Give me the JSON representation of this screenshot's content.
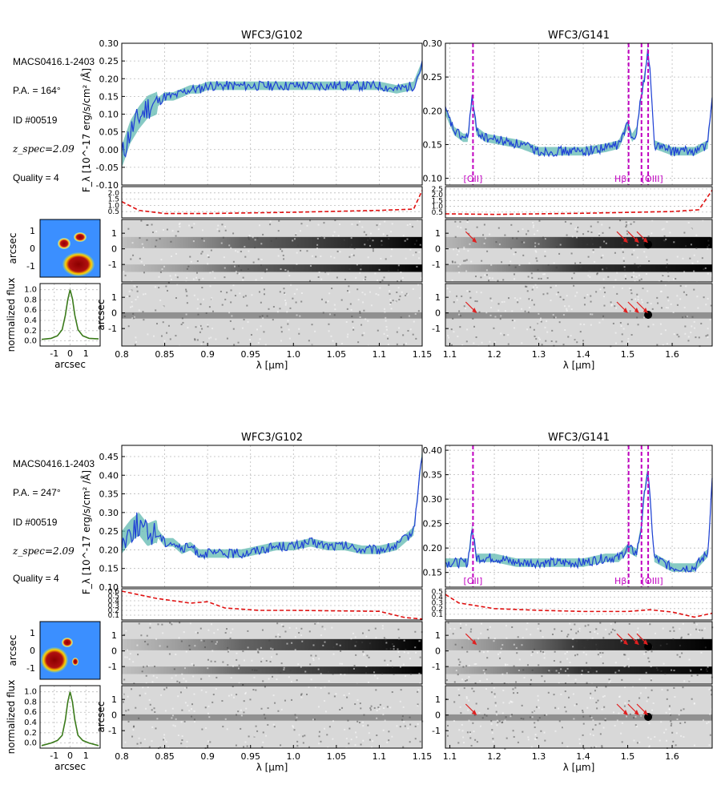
{
  "colors": {
    "spectrum": "#1f3fd6",
    "error_band": "#5fb8b0",
    "contamination": "#e01010",
    "emission_line": "#c000c0",
    "profile": "#3a7a1a",
    "arrow": "#e02020"
  },
  "panels": [
    {
      "name": "upper",
      "info": {
        "field": "MACS0416.1-2403",
        "pa": "P.A. = 164°",
        "id": "ID #00519",
        "zspec": "z_spec=2.09",
        "quality": "Quality = 4"
      }
    },
    {
      "name": "lower",
      "info": {
        "field": "MACS0416.1-2403",
        "pa": "P.A. = 247°",
        "id": "ID #00519",
        "zspec": "z_spec=2.09",
        "quality": "Quality = 4"
      }
    }
  ],
  "chart_data": [
    {
      "type": "line",
      "panel": "upper",
      "title": "WFC3/G102",
      "xlabel": "λ [μm]",
      "ylabel": "F_λ [10^-17 erg/s/cm² /Å]",
      "xlim": [
        0.8,
        1.15
      ],
      "ylim": [
        -0.1,
        0.3
      ],
      "xticks": [
        "0.8",
        "0.85",
        "0.9",
        "0.95",
        "1.0",
        "1.05",
        "1.1",
        "1.15"
      ],
      "yticks": [
        "-0.10",
        "-0.05",
        "0.00",
        "0.05",
        "0.10",
        "0.15",
        "0.20",
        "0.25",
        "0.30"
      ],
      "spectrum": {
        "x": [
          0.8,
          0.81,
          0.82,
          0.83,
          0.84,
          0.85,
          0.86,
          0.87,
          0.88,
          0.89,
          0.9,
          0.92,
          0.94,
          0.96,
          0.98,
          1.0,
          1.02,
          1.04,
          1.06,
          1.08,
          1.1,
          1.12,
          1.14,
          1.15
        ],
        "y": [
          -0.02,
          0.05,
          0.09,
          0.12,
          0.13,
          0.15,
          0.15,
          0.16,
          0.17,
          0.17,
          0.18,
          0.18,
          0.18,
          0.18,
          0.18,
          0.18,
          0.18,
          0.18,
          0.18,
          0.18,
          0.18,
          0.17,
          0.18,
          0.24
        ]
      },
      "contamination": {
        "ylim": [
          0,
          2.5
        ],
        "yticks": [
          "0.5",
          "1.0",
          "1.5",
          "2.0"
        ],
        "x": [
          0.8,
          0.82,
          0.85,
          0.9,
          1.0,
          1.1,
          1.14,
          1.15
        ],
        "y": [
          1.3,
          0.6,
          0.35,
          0.35,
          0.45,
          0.6,
          0.7,
          2.2
        ]
      },
      "spatial_axis": {
        "ticks": [
          "1",
          "0",
          "-1"
        ],
        "label": "arcsec"
      },
      "line_markers": []
    },
    {
      "type": "line",
      "panel": "upper",
      "title": "WFC3/G141",
      "xlabel": "λ [μm]",
      "ylabel": "",
      "xlim": [
        1.09,
        1.69
      ],
      "ylim": [
        0.09,
        0.3
      ],
      "xticks": [
        "1.1",
        "1.2",
        "1.3",
        "1.4",
        "1.5",
        "1.6"
      ],
      "yticks": [
        "0.10",
        "0.15",
        "0.20",
        "0.25",
        "0.30"
      ],
      "spectrum": {
        "x": [
          1.09,
          1.11,
          1.13,
          1.14,
          1.15,
          1.16,
          1.18,
          1.22,
          1.26,
          1.3,
          1.35,
          1.4,
          1.45,
          1.48,
          1.5,
          1.51,
          1.52,
          1.53,
          1.54,
          1.545,
          1.55,
          1.56,
          1.6,
          1.65,
          1.68,
          1.69
        ],
        "y": [
          0.2,
          0.17,
          0.16,
          0.16,
          0.22,
          0.17,
          0.16,
          0.155,
          0.15,
          0.14,
          0.14,
          0.14,
          0.145,
          0.15,
          0.18,
          0.16,
          0.17,
          0.22,
          0.26,
          0.29,
          0.26,
          0.15,
          0.14,
          0.14,
          0.15,
          0.22
        ]
      },
      "contamination": {
        "ylim": [
          0,
          2.7
        ],
        "yticks": [
          "0.5",
          "1.0",
          "1.5",
          "2.0",
          "2.5"
        ],
        "x": [
          1.09,
          1.2,
          1.4,
          1.6,
          1.66,
          1.69
        ],
        "y": [
          0.35,
          0.3,
          0.4,
          0.55,
          0.7,
          2.4
        ]
      },
      "spatial_axis": {
        "ticks": [
          "1",
          "0",
          "-1"
        ],
        "label": ""
      },
      "line_markers": [
        {
          "label": "[OII]",
          "x": 1.152
        },
        {
          "label": "Hβ",
          "x": 1.502
        },
        {
          "label": "[OIII]",
          "x": 1.531
        },
        {
          "label": "",
          "x": 1.546
        }
      ]
    },
    {
      "type": "line",
      "panel": "lower",
      "title": "WFC3/G102",
      "xlabel": "λ [μm]",
      "ylabel": "F_λ [10^-17 erg/s/cm² /Å]",
      "xlim": [
        0.8,
        1.15
      ],
      "ylim": [
        0.1,
        0.48
      ],
      "xticks": [
        "0.8",
        "0.85",
        "0.9",
        "0.95",
        "1.0",
        "1.05",
        "1.1",
        "1.15"
      ],
      "yticks": [
        "0.10",
        "0.15",
        "0.20",
        "0.25",
        "0.30",
        "0.35",
        "0.40",
        "0.45"
      ],
      "spectrum": {
        "x": [
          0.8,
          0.81,
          0.82,
          0.83,
          0.84,
          0.85,
          0.86,
          0.87,
          0.88,
          0.89,
          0.9,
          0.92,
          0.94,
          0.96,
          0.98,
          1.0,
          1.02,
          1.04,
          1.06,
          1.08,
          1.1,
          1.12,
          1.14,
          1.15
        ],
        "y": [
          0.22,
          0.25,
          0.27,
          0.24,
          0.25,
          0.22,
          0.22,
          0.2,
          0.21,
          0.19,
          0.19,
          0.19,
          0.19,
          0.2,
          0.21,
          0.21,
          0.22,
          0.21,
          0.21,
          0.2,
          0.2,
          0.21,
          0.25,
          0.46
        ]
      },
      "contamination": {
        "ylim": [
          0,
          0.65
        ],
        "yticks": [
          "0.1",
          "0.2",
          "0.3",
          "0.4",
          "0.5",
          "0.6"
        ],
        "x": [
          0.8,
          0.84,
          0.88,
          0.9,
          0.92,
          0.96,
          1.0,
          1.1,
          1.13,
          1.15
        ],
        "y": [
          0.6,
          0.45,
          0.35,
          0.38,
          0.25,
          0.2,
          0.2,
          0.18,
          0.05,
          0.02
        ]
      },
      "spatial_axis": {
        "ticks": [
          "1",
          "0",
          "-1"
        ],
        "label": "arcsec"
      },
      "line_markers": []
    },
    {
      "type": "line",
      "panel": "lower",
      "title": "WFC3/G141",
      "xlabel": "λ [μm]",
      "ylabel": "",
      "xlim": [
        1.09,
        1.69
      ],
      "ylim": [
        0.12,
        0.41
      ],
      "xticks": [
        "1.1",
        "1.2",
        "1.3",
        "1.4",
        "1.5",
        "1.6"
      ],
      "yticks": [
        "0.15",
        "0.20",
        "0.25",
        "0.30",
        "0.35",
        "0.40"
      ],
      "spectrum": {
        "x": [
          1.09,
          1.12,
          1.14,
          1.15,
          1.16,
          1.2,
          1.25,
          1.3,
          1.35,
          1.4,
          1.45,
          1.48,
          1.5,
          1.52,
          1.53,
          1.54,
          1.545,
          1.55,
          1.56,
          1.6,
          1.65,
          1.68,
          1.69
        ],
        "y": [
          0.17,
          0.17,
          0.17,
          0.24,
          0.18,
          0.18,
          0.17,
          0.17,
          0.17,
          0.17,
          0.18,
          0.18,
          0.2,
          0.19,
          0.24,
          0.33,
          0.36,
          0.3,
          0.18,
          0.16,
          0.16,
          0.19,
          0.34
        ]
      },
      "contamination": {
        "ylim": [
          0,
          0.55
        ],
        "yticks": [
          "0.1",
          "0.2",
          "0.3",
          "0.4",
          "0.5"
        ],
        "x": [
          1.09,
          1.12,
          1.2,
          1.3,
          1.4,
          1.5,
          1.55,
          1.6,
          1.65,
          1.69
        ],
        "y": [
          0.45,
          0.3,
          0.2,
          0.17,
          0.15,
          0.15,
          0.18,
          0.14,
          0.05,
          0.12
        ]
      },
      "spatial_axis": {
        "ticks": [
          "1",
          "0",
          "-1"
        ],
        "label": ""
      },
      "line_markers": [
        {
          "label": "[OII]",
          "x": 1.152
        },
        {
          "label": "Hβ",
          "x": 1.502
        },
        {
          "label": "[OIII]",
          "x": 1.531
        },
        {
          "label": "",
          "x": 1.546
        }
      ]
    }
  ],
  "profiles": [
    {
      "panel": "upper",
      "xlabel": "arcsec",
      "ylabel": "normalized flux",
      "xticks": [
        "-1",
        "0",
        "1"
      ],
      "yticks": [
        "0.0",
        "0.2",
        "0.4",
        "0.6",
        "0.8",
        "1.0"
      ],
      "stamp_yticks": [
        "1",
        "0",
        "-1"
      ],
      "stamp_label": "arcsec",
      "x": [
        -1.8,
        -1.2,
        -0.8,
        -0.5,
        -0.3,
        -0.15,
        0,
        0.15,
        0.3,
        0.5,
        0.8,
        1.2,
        1.8
      ],
      "y": [
        0.03,
        0.05,
        0.1,
        0.22,
        0.5,
        0.8,
        1.0,
        0.82,
        0.5,
        0.22,
        0.1,
        0.05,
        0.04
      ]
    },
    {
      "panel": "lower",
      "xlabel": "arcsec",
      "ylabel": "normalized flux",
      "xticks": [
        "-1",
        "0",
        "1"
      ],
      "yticks": [
        "0.0",
        "0.2",
        "0.4",
        "0.6",
        "0.8",
        "1.0"
      ],
      "stamp_yticks": [
        "1",
        "0",
        "-1"
      ],
      "stamp_label": "arcsec",
      "x": [
        -1.8,
        -1.2,
        -0.8,
        -0.5,
        -0.3,
        -0.15,
        0,
        0.15,
        0.3,
        0.5,
        0.8,
        1.2,
        1.8
      ],
      "y": [
        -0.05,
        0.0,
        0.05,
        0.15,
        0.45,
        0.8,
        1.0,
        0.8,
        0.45,
        0.15,
        0.05,
        0.0,
        -0.05
      ]
    }
  ]
}
